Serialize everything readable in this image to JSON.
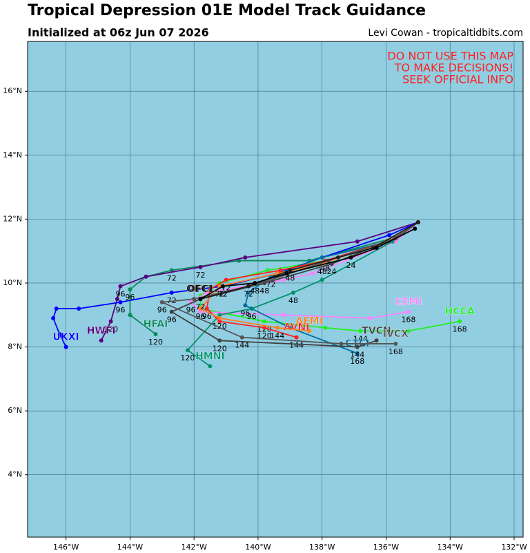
{
  "chart_data": {
    "type": "track",
    "title": "Tropical Depression 01E Model Track Guidance",
    "subtitle": "Initialized at 06z Jun 07 2026",
    "credit": "Levi Cowan - tropicaltidbits.com",
    "warning": [
      "DO NOT USE THIS MAP",
      "TO MAKE DECISIONS!",
      "SEEK OFFICIAL INFO"
    ],
    "background": "#92cee2",
    "grid": true,
    "xlim": [
      -147.2,
      -131.72
    ],
    "ylim": [
      2.05,
      17.56
    ],
    "xticks": [
      {
        "value": -146,
        "label": "146°W"
      },
      {
        "value": -144,
        "label": "144°W"
      },
      {
        "value": -142,
        "label": "142°W"
      },
      {
        "value": -140,
        "label": "140°W"
      },
      {
        "value": -138,
        "label": "138°W"
      },
      {
        "value": -136,
        "label": "136°W"
      },
      {
        "value": -134,
        "label": "134°W"
      },
      {
        "value": -132,
        "label": "132°W"
      }
    ],
    "yticks": [
      {
        "value": 4,
        "label": "4°N"
      },
      {
        "value": 6,
        "label": "6°N"
      },
      {
        "value": 8,
        "label": "8°N"
      },
      {
        "value": 10,
        "label": "10°N"
      },
      {
        "value": 12,
        "label": "12°N"
      },
      {
        "value": 14,
        "label": "14°N"
      },
      {
        "value": 16,
        "label": "16°N"
      }
    ],
    "series": [
      {
        "name": "HCCA",
        "color": "#22ee22",
        "x": [
          -135.0,
          -135.8,
          -137.9,
          -139.7,
          -141.2,
          -141.8,
          -141.8,
          -139.8,
          -137.9,
          -136.8,
          -135.3,
          -133.7
        ],
        "values": [
          11.9,
          11.3,
          10.7,
          10.4,
          10.0,
          9.6,
          9.2,
          8.8,
          8.6,
          8.5,
          8.5,
          8.8
        ],
        "hours": [
          null,
          null,
          null,
          null,
          null,
          null,
          null,
          120,
          null,
          144,
          null,
          168
        ]
      },
      {
        "name": "CEMI",
        "color": "#ff80ff",
        "x": [
          -135.0,
          -135.7,
          -138.3,
          -139.2,
          -141.6,
          -142.1,
          -141.8,
          -139.2,
          -136.5,
          -135.3
        ],
        "values": [
          11.9,
          11.3,
          10.3,
          10.1,
          9.7,
          9.4,
          9.1,
          9.0,
          8.9,
          9.1
        ],
        "hours": [
          null,
          null,
          null,
          null,
          null,
          96,
          null,
          null,
          null,
          168
        ]
      },
      {
        "name": "HFAI",
        "color": "#0a8a5a",
        "x": [
          -135.0,
          -135.8,
          -138.4,
          -140.6,
          -142.7,
          -143.5,
          -144.0,
          -144.0,
          -143.2
        ],
        "values": [
          11.9,
          11.4,
          10.7,
          10.7,
          10.4,
          10.2,
          9.8,
          9.0,
          8.4
        ],
        "hours": [
          null,
          null,
          null,
          null,
          72,
          null,
          96,
          null,
          120
        ]
      },
      {
        "name": "HWFI",
        "color": "#5c0080",
        "x": [
          -135.0,
          -136.9,
          -140.4,
          -141.8,
          -143.5,
          -144.3,
          -144.4,
          -144.6,
          -144.9
        ],
        "values": [
          11.9,
          11.3,
          10.8,
          10.5,
          10.2,
          9.9,
          9.5,
          8.8,
          8.2
        ],
        "hours": [
          null,
          null,
          null,
          72,
          null,
          96,
          null,
          120,
          null
        ]
      },
      {
        "name": "HMNI",
        "color": "#00936a",
        "x": [
          -135.0,
          -135.8,
          -138.0,
          -138.9,
          -140.2,
          -141.2,
          -142.2,
          -141.5
        ],
        "values": [
          11.9,
          11.3,
          10.1,
          9.7,
          9.2,
          9.0,
          7.9,
          7.4
        ],
        "hours": [
          null,
          null,
          null,
          48,
          96,
          null,
          120,
          null
        ]
      },
      {
        "name": "UKXI",
        "color": "#0000ff",
        "x": [
          -135.0,
          -135.9,
          -138.0,
          -139.4,
          -141.1,
          -142.7,
          -144.3,
          -145.6,
          -146.3,
          -146.4,
          -146.2,
          -146.0
        ],
        "values": [
          11.9,
          11.5,
          10.8,
          10.3,
          9.9,
          9.7,
          9.4,
          9.2,
          9.2,
          8.9,
          8.4,
          8.0
        ],
        "hours": [
          null,
          null,
          null,
          null,
          null,
          72,
          96,
          null,
          null,
          null,
          null,
          null
        ]
      },
      {
        "name": "CTCI",
        "color": "#006ea0",
        "x": [
          -135.0,
          -135.9,
          -138.0,
          -139.6,
          -140.3,
          -140.4,
          -139.0,
          -136.9
        ],
        "values": [
          11.9,
          11.3,
          10.8,
          10.2,
          9.7,
          9.3,
          8.6,
          7.8
        ],
        "hours": [
          null,
          null,
          null,
          72,
          null,
          96,
          null,
          168
        ]
      },
      {
        "name": "AVNI",
        "color": "#ff2020",
        "x": [
          -135.0,
          -136.0,
          -137.9,
          -139.3,
          -141.0,
          -141.5,
          -141.6,
          -141.2,
          -139.8,
          -138.8
        ],
        "values": [
          11.9,
          11.3,
          10.7,
          10.4,
          10.1,
          9.8,
          9.2,
          8.8,
          8.6,
          8.3
        ],
        "hours": [
          null,
          null,
          48,
          null,
          72,
          null,
          96,
          null,
          120,
          144
        ]
      },
      {
        "name": "AEMI",
        "color": "#ff7f20",
        "x": [
          -135.0,
          -136.0,
          -138.0,
          -139.4,
          -141.2,
          -141.8,
          -141.2,
          -139.4,
          -138.4
        ],
        "values": [
          11.9,
          11.3,
          10.6,
          10.3,
          9.9,
          9.2,
          8.9,
          8.6,
          8.5
        ],
        "hours": [
          null,
          null,
          48,
          null,
          72,
          96,
          120,
          144,
          null
        ]
      },
      {
        "name": "TVCN",
        "color": "#404040",
        "x": [
          -135.0,
          -135.7,
          -137.7,
          -139.8,
          -141.8,
          -142.7,
          -141.2,
          -136.9,
          -136.3
        ],
        "values": [
          11.9,
          11.4,
          10.6,
          10.0,
          9.5,
          9.1,
          8.2,
          8.0,
          8.2
        ],
        "hours": [
          null,
          null,
          24,
          48,
          72,
          96,
          120,
          144,
          null
        ]
      },
      {
        "name": "IVCX",
        "color": "#555555",
        "x": [
          -135.0,
          -135.7,
          -137.8,
          -139.9,
          -142.0,
          -143.0,
          -140.5,
          -137.4,
          -135.7
        ],
        "values": [
          11.9,
          11.4,
          10.7,
          10.0,
          9.5,
          9.4,
          8.3,
          8.1,
          8.1
        ],
        "hours": [
          null,
          null,
          null,
          null,
          null,
          96,
          144,
          null,
          168
        ]
      },
      {
        "name": "OFCI",
        "color": "#202020",
        "x": [
          -135.0,
          -136.4,
          -137.5,
          -139.0,
          -140.3,
          -141.8
        ],
        "values": [
          11.9,
          11.1,
          10.8,
          10.4,
          9.9,
          9.5
        ],
        "hours": [
          null,
          null,
          null,
          48,
          72,
          null
        ]
      },
      {
        "name": "OFCL",
        "color": "#000000",
        "x": [
          -135.1,
          -136.3,
          -137.1,
          -139.1,
          -140.1,
          -141.1,
          -141.8
        ],
        "values": [
          11.7,
          11.1,
          10.8,
          10.3,
          10.0,
          9.9,
          9.5
        ],
        "hours": [
          null,
          null,
          24,
          null,
          48,
          72,
          null
        ]
      }
    ]
  }
}
